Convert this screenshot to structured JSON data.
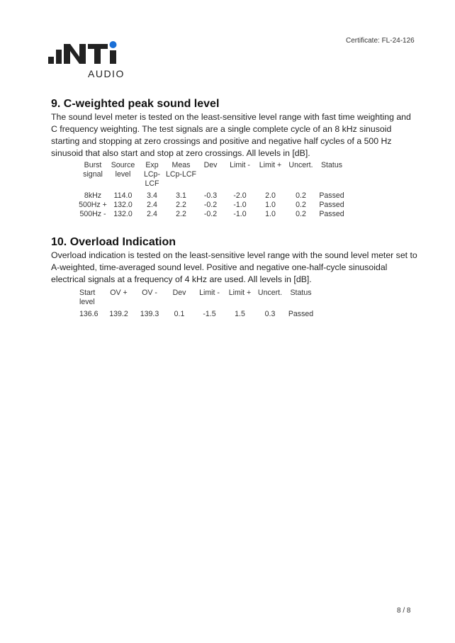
{
  "header": {
    "certificate": "Certificate: FL-24-126",
    "logo_text": ".INTi",
    "logo_sub": "AUDIO",
    "logo_accent": "#1a6fd6"
  },
  "section9": {
    "title": "9. C-weighted peak sound level",
    "text": "The sound level meter is tested on the least-sensitive level range with fast time weighting and C frequency weighting. The test signals are a single complete cycle of an 8 kHz sinusoid starting and stopping at zero crossings and positive and negative half cycles of a 500 Hz sinusoid that also start and stop at zero crossings. All levels in [dB].",
    "headers": [
      [
        "Burst",
        "signal"
      ],
      [
        "Source",
        "level"
      ],
      [
        "Exp",
        "LCp-LCF"
      ],
      [
        "Meas",
        "LCp-LCF"
      ],
      [
        "Dev",
        ""
      ],
      [
        "Limit -",
        ""
      ],
      [
        "Limit +",
        ""
      ],
      [
        "Uncert.",
        ""
      ],
      [
        "Status",
        ""
      ]
    ],
    "rows": [
      [
        "8kHz",
        "114.0",
        "3.4",
        "3.1",
        "-0.3",
        "-2.0",
        "2.0",
        "0.2",
        "Passed"
      ],
      [
        "500Hz +",
        "132.0",
        "2.4",
        "2.2",
        "-0.2",
        "-1.0",
        "1.0",
        "0.2",
        "Passed"
      ],
      [
        "500Hz -",
        "132.0",
        "2.4",
        "2.2",
        "-0.2",
        "-1.0",
        "1.0",
        "0.2",
        "Passed"
      ]
    ]
  },
  "section10": {
    "title": "10. Overload Indication",
    "text": "Overload indication is tested on the least-sensitive level range with the sound level meter set to A-weighted, time-averaged sound level. Positive and negative one-half-cycle sinusoidal electrical signals at a frequency of 4 kHz are used. All levels in [dB].",
    "headers": [
      [
        "Start",
        "level"
      ],
      [
        "OV +",
        ""
      ],
      [
        "OV -",
        ""
      ],
      [
        "Dev",
        ""
      ],
      [
        "Limit -",
        ""
      ],
      [
        "Limit +",
        ""
      ],
      [
        "Uncert.",
        ""
      ],
      [
        "Status",
        ""
      ]
    ],
    "rows": [
      [
        "136.6",
        "139.2",
        "139.3",
        "0.1",
        "-1.5",
        "1.5",
        "0.3",
        "Passed"
      ]
    ]
  },
  "footer": {
    "page": "8 / 8"
  }
}
